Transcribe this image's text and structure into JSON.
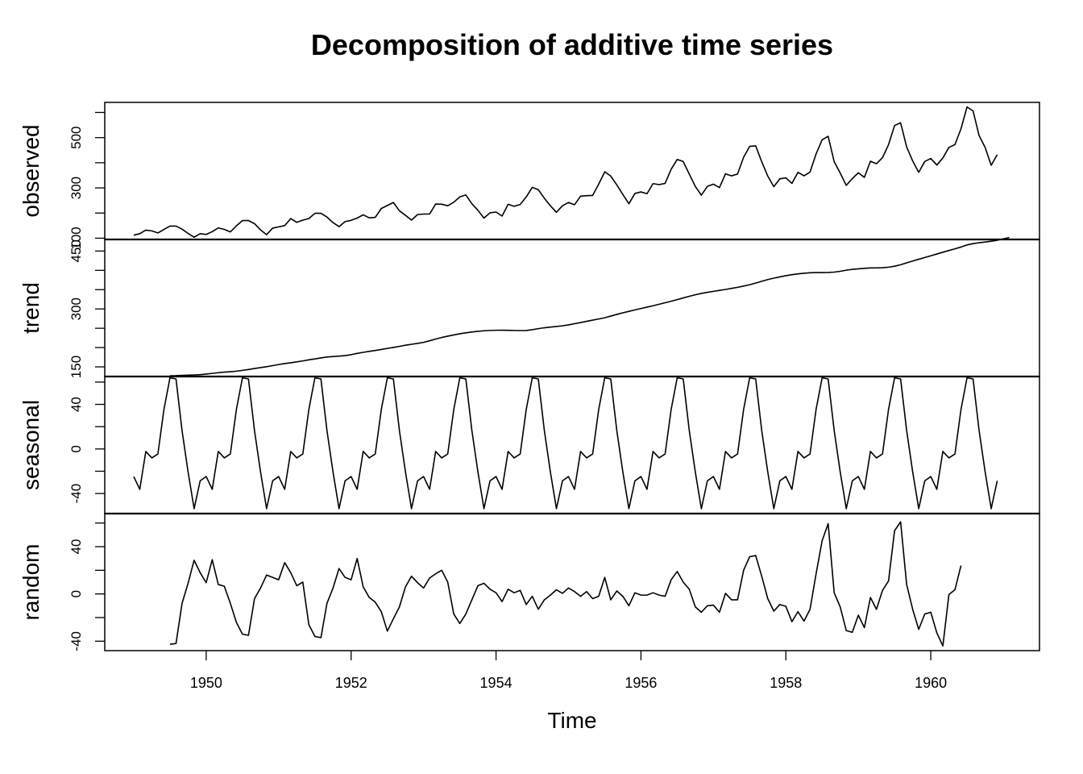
{
  "chart_data": {
    "type": "line",
    "title": "Decomposition of additive time series",
    "xlabel": "Time",
    "x_start": 1949,
    "x_step_months": 1,
    "xlim": [
      1948.6,
      1961.5
    ],
    "x_ticks": [
      1950,
      1952,
      1954,
      1956,
      1958,
      1960
    ],
    "x_tick_labels": [
      "1950",
      "1952",
      "1954",
      "1956",
      "1958",
      "1960"
    ],
    "panels": [
      {
        "name": "observed",
        "ylabel": "observed",
        "ylim": [
          95,
          640
        ],
        "y_labeled_ticks": [
          100,
          300,
          500
        ],
        "y_tick_labels": [
          "100",
          "300",
          "500"
        ],
        "y_minor_ticks": [
          200,
          400,
          600
        ],
        "values": [
          112,
          118,
          132,
          129,
          121,
          135,
          148,
          148,
          136,
          119,
          104,
          118,
          115,
          126,
          141,
          135,
          125,
          149,
          170,
          170,
          158,
          133,
          114,
          140,
          145,
          150,
          178,
          163,
          172,
          178,
          199,
          199,
          184,
          162,
          146,
          166,
          171,
          180,
          193,
          181,
          183,
          218,
          230,
          242,
          209,
          191,
          172,
          194,
          196,
          196,
          236,
          235,
          229,
          243,
          264,
          272,
          237,
          211,
          180,
          201,
          204,
          188,
          235,
          227,
          234,
          264,
          302,
          293,
          259,
          229,
          203,
          229,
          242,
          233,
          267,
          269,
          270,
          315,
          364,
          347,
          312,
          274,
          237,
          278,
          284,
          277,
          317,
          313,
          318,
          374,
          413,
          405,
          355,
          306,
          271,
          306,
          315,
          301,
          356,
          348,
          355,
          422,
          465,
          467,
          404,
          347,
          305,
          336,
          340,
          318,
          362,
          348,
          363,
          435,
          491,
          505,
          404,
          359,
          310,
          337,
          360,
          342,
          406,
          396,
          420,
          472,
          548,
          559,
          463,
          407,
          362,
          405,
          417,
          391,
          419,
          461,
          472,
          535,
          622,
          606,
          508,
          461,
          390,
          432
        ]
      },
      {
        "name": "trend",
        "ylabel": "trend",
        "ylim": [
          125,
          480
        ],
        "y_labeled_ticks": [
          150,
          300,
          450
        ],
        "y_tick_labels": [
          "150",
          "300",
          "450"
        ],
        "y_minor_ticks": [
          200,
          250,
          350,
          400
        ],
        "values_start_index": 6,
        "values": [
          127,
          127.2,
          128,
          128.6,
          129,
          129.8,
          131.3,
          133.1,
          134.9,
          136.3,
          137.4,
          138.8,
          140.9,
          143.2,
          145.7,
          148.1,
          150.5,
          153.2,
          156,
          158.6,
          160.7,
          162.9,
          165.5,
          168.2,
          170.6,
          173.2,
          175.5,
          176.9,
          177.8,
          179.1,
          181.6,
          184.9,
          187.6,
          190.1,
          192.4,
          195.1,
          197.8,
          200.3,
          203.1,
          206.1,
          208.5,
          210.7,
          213.5,
          217.5,
          222.1,
          226.1,
          229.6,
          232.6,
          235.8,
          238.2,
          240.2,
          242.1,
          243.5,
          244.3,
          244.8,
          244.9,
          244.6,
          244.3,
          244,
          244.2,
          246.2,
          249,
          251.3,
          253,
          254.6,
          256.3,
          258.8,
          261.8,
          264.8,
          267.9,
          271,
          274,
          277.2,
          281.5,
          285.9,
          290,
          293.8,
          297.5,
          301.2,
          304.7,
          308.3,
          312.1,
          316.1,
          320,
          324.2,
          328.5,
          332.8,
          336.7,
          340.2,
          343.1,
          345.6,
          348.1,
          350.5,
          353.2,
          356,
          359.3,
          362.8,
          366.9,
          371.7,
          376.1,
          379.7,
          383,
          386.1,
          388.7,
          390.8,
          392.5,
          393.7,
          394.2,
          394.2,
          394.5,
          395.4,
          397.5,
          400.4,
          402.6,
          403.9,
          405.2,
          406.2,
          406.4,
          406.8,
          408.2,
          410.7,
          414.5,
          419.4,
          424.2,
          428.7,
          433.2,
          437.7,
          442.3,
          447,
          451.4,
          455.7,
          460.3,
          465.8,
          469.2,
          471.6,
          473.3,
          475.4,
          478,
          481.5,
          484.9
        ]
      },
      {
        "name": "seasonal",
        "ylabel": "seasonal",
        "ylim": [
          -58,
          65
        ],
        "y_labeled_ticks": [
          -40,
          0,
          40
        ],
        "y_tick_labels": [
          "-40",
          "0",
          "40"
        ],
        "y_minor_ticks": [
          -20,
          20,
          60
        ],
        "cycle": [
          -24.75,
          -36.19,
          -2.24,
          -8.04,
          -4.51,
          35.4,
          63.83,
          62.82,
          16.52,
          -20.64,
          -53.59,
          -28.62
        ]
      },
      {
        "name": "random",
        "ylabel": "random",
        "ylim": [
          -48,
          68
        ],
        "y_labeled_ticks": [
          -40,
          0,
          40
        ],
        "y_tick_labels": [
          "-40",
          "0",
          "40"
        ],
        "y_minor_ticks": [
          -20,
          20,
          60
        ],
        "values_start_index": 6,
        "values": [
          -42.6,
          -42.0,
          -8.0,
          9.0,
          28.5,
          18.0,
          9.5,
          29.0,
          8.0,
          6.5,
          -8.0,
          -24.0,
          -34.0,
          -35.0,
          -4.0,
          5.0,
          16.0,
          14.0,
          12.0,
          26.5,
          18.0,
          7.0,
          10.0,
          -26.0,
          -36.0,
          -37.0,
          -8.0,
          5.0,
          21.5,
          14.0,
          12.0,
          30.0,
          6.0,
          -3.0,
          -7.0,
          -15.0,
          -31.5,
          -21.0,
          -11.0,
          6.0,
          15.0,
          9.5,
          5.0,
          13.5,
          17.0,
          20.0,
          10.0,
          -17.0,
          -25.0,
          -17.0,
          -5.0,
          7.0,
          9.0,
          4.0,
          1.0,
          -6.5,
          4.0,
          1.0,
          3.0,
          -9.0,
          -2.0,
          -13.0,
          -5.0,
          -1.0,
          3.5,
          0.5,
          5.0,
          2.0,
          -2.0,
          2.0,
          -4.0,
          -2.0,
          14.0,
          -5.0,
          2.5,
          -2.0,
          -10.0,
          1.0,
          -1.0,
          -1.0,
          1.0,
          -1.0,
          -2.0,
          12.0,
          19.0,
          10.0,
          4.0,
          -11.0,
          -15.5,
          -10.0,
          -9.5,
          -15.5,
          0.5,
          -5.0,
          -5.0,
          20.0,
          31.5,
          32.5,
          15.0,
          -4.0,
          -14.5,
          -9.0,
          -10.5,
          -23.5,
          -15.0,
          -23.0,
          -13.0,
          17.0,
          45.0,
          59.5,
          1.0,
          -11.0,
          -31.0,
          -32.5,
          -18.0,
          -28.5,
          -3.0,
          -13.0,
          3.0,
          11.0,
          53.5,
          61.0,
          8.0,
          -13.0,
          -30.0,
          -17.0,
          -15.5,
          -33.0,
          -44.0,
          -0.5,
          3.5,
          24.0
        ]
      }
    ]
  }
}
